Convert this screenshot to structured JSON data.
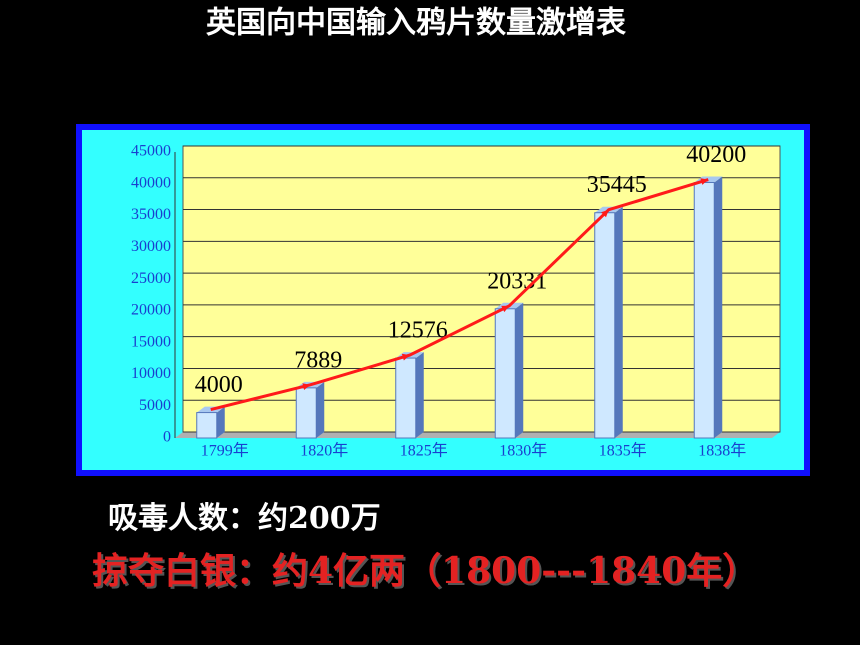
{
  "chart_data": {
    "type": "bar",
    "title": "英国向中国输入鸦片数量激增表",
    "categories": [
      "1799年",
      "1820年",
      "1825年",
      "1830年",
      "1835年",
      "1838年"
    ],
    "values": [
      4000,
      7889,
      12576,
      20331,
      35445,
      40200
    ],
    "color": "#cfe8ff",
    "line_color": "#ff1a1a",
    "ylim": [
      0,
      45000
    ],
    "yticks": [
      0,
      5000,
      10000,
      15000,
      20000,
      25000,
      30000,
      35000,
      40000,
      45000
    ],
    "grid": true,
    "annotations": [
      "吸毒人数：约200万",
      "掠夺白银：约4亿两（1800---1840年）"
    ]
  }
}
